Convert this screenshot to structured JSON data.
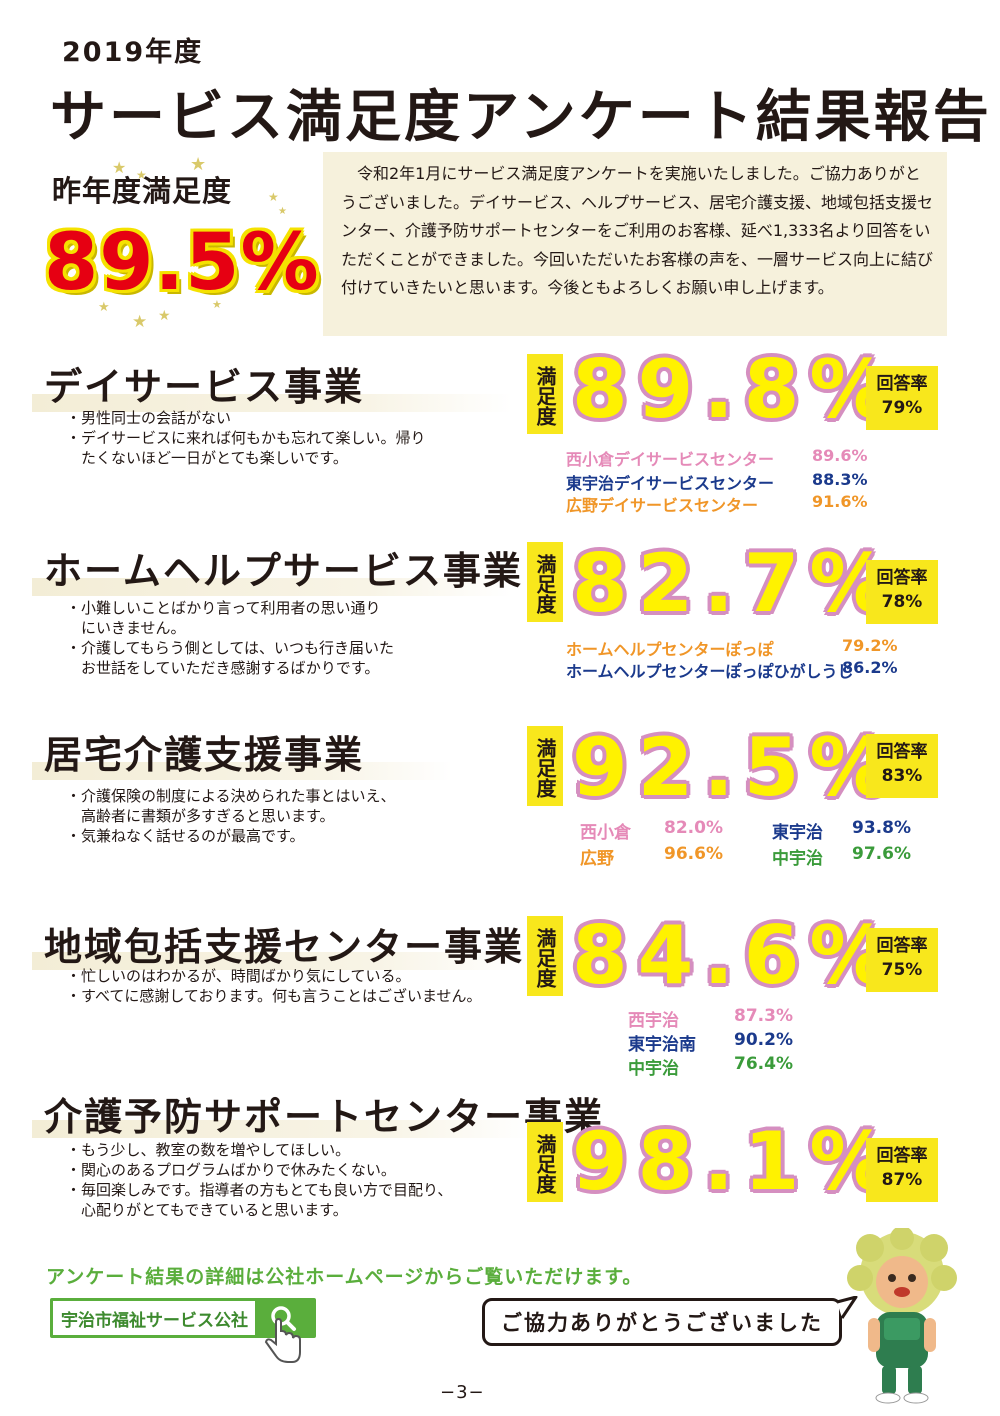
{
  "header": {
    "year": "2019年度",
    "title": "サービス満足度アンケート結果報告"
  },
  "last_year": {
    "label": "昨年度満足度",
    "value": "89.5%"
  },
  "intro": {
    "text": "　令和2年1月にサービス満足度アンケートを実施いたしました。ご協力ありがとうございました。デイサービス、ヘルプサービス、居宅介護支援、地域包括支援センター、介護予防サポートセンターをご利用のお客様、延べ1,333名より回答をいただくことができました。今回いただいたお客様の声を、一層サービス向上に結び付けていきたいと思います。今後ともよろしくお願い申し上げます。"
  },
  "common": {
    "sat_label": "満足度",
    "resp_label": "回答率"
  },
  "sections": [
    {
      "title": "デイサービス事業",
      "comments": [
        "・男性同士の会話がない",
        "・デイサービスに来れば何もかも忘れて楽しい。帰り",
        "　たくないほど一日がとても楽しいです。"
      ],
      "satisfaction": "89.8%",
      "response_rate": "79%",
      "breakdown": [
        {
          "name": "西小倉デイサービスセンター",
          "value": "89.6%"
        },
        {
          "name": "東宇治デイサービスセンター",
          "value": "88.3%"
        },
        {
          "name": "広野デイサービスセンター",
          "value": "91.6%"
        }
      ]
    },
    {
      "title": "ホームヘルプサービス事業",
      "comments": [
        "・小難しいことばかり言って利用者の思い通り",
        "　にいきません。",
        "・介護してもらう側としては、いつも行き届いた",
        "　お世話をしていただき感謝するばかりです。"
      ],
      "satisfaction": "82.7%",
      "response_rate": "78%",
      "breakdown": [
        {
          "name": "ホームヘルプセンターぽっぽ",
          "value": "79.2%"
        },
        {
          "name": "ホームヘルプセンターぽっぽひがしうじ",
          "value": "86.2%"
        }
      ]
    },
    {
      "title": "居宅介護支援事業",
      "comments": [
        "・介護保険の制度による決められた事とはいえ、",
        "　高齢者に書類が多すぎると思います。",
        "・気兼ねなく話せるのが最高です。"
      ],
      "satisfaction": "92.5%",
      "response_rate": "83%",
      "breakdown": [
        {
          "name": "西小倉",
          "value": "82.0%"
        },
        {
          "name": "東宇治",
          "value": "93.8%"
        },
        {
          "name": "広野",
          "value": "96.6%"
        },
        {
          "name": "中宇治",
          "value": "97.6%"
        }
      ]
    },
    {
      "title": "地域包括支援センター事業",
      "comments": [
        "・忙しいのはわかるが、時間ばかり気にしている。",
        "・すべてに感謝しております。何も言うことはございません。"
      ],
      "satisfaction": "84.6%",
      "response_rate": "75%",
      "breakdown": [
        {
          "name": "西宇治",
          "value": "87.3%"
        },
        {
          "name": "東宇治南",
          "value": "90.2%"
        },
        {
          "name": "中宇治",
          "value": "76.4%"
        }
      ]
    },
    {
      "title": "介護予防サポートセンター事業",
      "comments": [
        "・もう少し、教室の数を増やしてほしい。",
        "・関心のあるプログラムばかりで休みたくない。",
        "・毎回楽しみです。指導者の方もとても良い方で目配り、",
        "　心配りがとてもできていると思います。"
      ],
      "satisfaction": "98.1%",
      "response_rate": "87%",
      "breakdown": []
    }
  ],
  "footer": {
    "note": "アンケート結果の詳細は公社ホームページからご覧いただけます。",
    "search_text": "宇治市福祉サービス公社",
    "thanks": "ご協力ありがとうございました",
    "page_number": "−3−"
  },
  "colors": {
    "accent_yellow": "#f8e71c",
    "value_outline": "#d58fc0",
    "last_year_red": "#e60012",
    "footer_green": "#5aae3c"
  },
  "icons": [
    "search-icon",
    "pointer-hand-icon",
    "star-icon",
    "mascot-illustration"
  ]
}
